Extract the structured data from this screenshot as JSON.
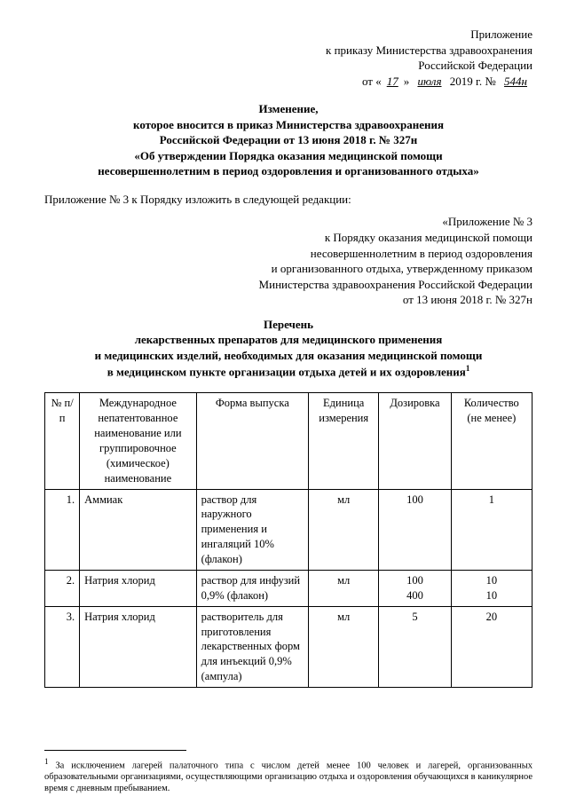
{
  "header": {
    "l1": "Приложение",
    "l2": "к приказу Министерства здравоохранения",
    "l3": "Российской Федерации",
    "from_prefix": "от «",
    "day": "17",
    "mid1": "» ",
    "month": "июля",
    "mid2": " 2019 г. № ",
    "order_no": "544н"
  },
  "title": {
    "l1": "Изменение,",
    "l2": "которое вносится в приказ Министерства здравоохранения",
    "l3": "Российской Федерации от 13 июня 2018 г. № 327н",
    "l4": "«Об утверждении Порядка оказания медицинской помощи",
    "l5": "несовершеннолетним в период оздоровления и организованного отдыха»"
  },
  "intro": "Приложение № 3 к Порядку изложить в следующей редакции:",
  "annex": {
    "l1": "«Приложение № 3",
    "l2": "к Порядку оказания медицинской помощи",
    "l3": "несовершеннолетним в период оздоровления",
    "l4": "и организованного отдыха, утвержденному приказом",
    "l5": "Министерства здравоохранения Российской Федерации",
    "l6": "от 13 июня 2018 г. № 327н"
  },
  "list_title": {
    "l1": "Перечень",
    "l2": "лекарственных препаратов для медицинского применения",
    "l3": "и медицинских изделий, необходимых для оказания медицинской помощи",
    "l4": "в медицинском пункте организации отдыха детей и их оздоровления"
  },
  "table": {
    "columns": [
      "№ п/п",
      "Международное непатентованное наименование или группировочное (химическое) наименование",
      "Форма выпуска",
      "Единица измерения",
      "Дозировка",
      "Количество (не менее)"
    ],
    "rows": [
      {
        "n": "1.",
        "name": "Аммиак",
        "form": "раствор для наружного применения и ингаляций 10% (флакон)",
        "unit": "мл",
        "dose": "100",
        "qty": "1"
      },
      {
        "n": "2.",
        "name": "Натрия хлорид",
        "form": "раствор для инфузий 0,9% (флакон)",
        "unit": "мл",
        "dose": "100\n400",
        "qty": "10\n10"
      },
      {
        "n": "3.",
        "name": "Натрия хлорид",
        "form": "растворитель для приготовления лекарственных форм для инъекций 0,9% (ампула)",
        "unit": "мл",
        "dose": "5",
        "qty": "20"
      }
    ]
  },
  "footnote_marker": "1",
  "footnote": "За исключением лагерей палаточного типа с числом детей менее 100 человек и лагерей, организованных образовательными организациями, осуществляющими организацию отдыха и оздоровления обучающихся в каникулярное время с дневным пребыванием."
}
